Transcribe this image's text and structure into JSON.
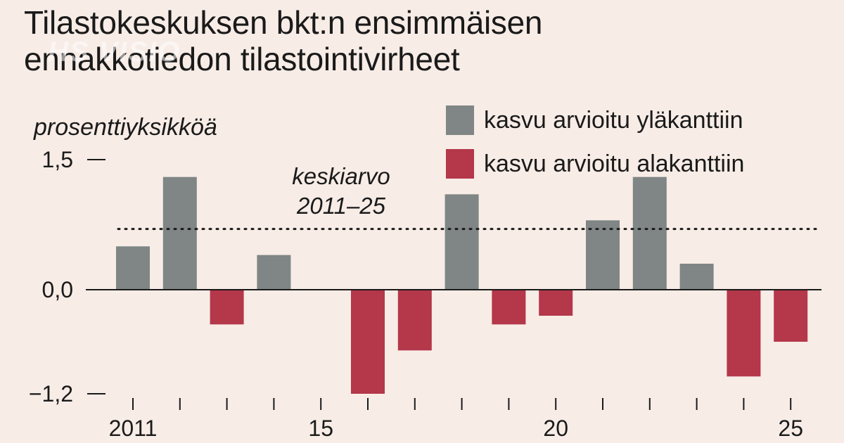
{
  "title_lines": [
    "Tilastokeskuksen bkt:n ensimmäisen",
    "ennakkotiedon tilastointivirheet"
  ],
  "watermark": "HS VISIO",
  "colors": {
    "over": "#7f8685",
    "under": "#b4374a",
    "background": "#f7ece6"
  },
  "legend": [
    {
      "label": "kasvu arvioitu yläkanttiin",
      "color_key": "over"
    },
    {
      "label": "kasvu arvioitu alakanttiin",
      "color_key": "under"
    }
  ],
  "chart_data": {
    "type": "bar",
    "title": "Tilastokeskuksen bkt:n ensimmäisen ennakkotiedon tilastointivirheet",
    "ylabel": "prosenttiyksikköä",
    "xlabel": "",
    "ylim": [
      -1.2,
      1.5
    ],
    "y_ticks": [
      {
        "value": 1.5,
        "label": "1,5"
      },
      {
        "value": 0.0,
        "label": "0,0"
      },
      {
        "value": -1.2,
        "label": "−1,2"
      }
    ],
    "x_tick_labels": [
      {
        "year": 2011,
        "label": "2011"
      },
      {
        "year": 2015,
        "label": "15"
      },
      {
        "year": 2020,
        "label": "20"
      },
      {
        "year": 2025,
        "label": "25"
      }
    ],
    "categories": [
      2011,
      2012,
      2013,
      2014,
      2015,
      2016,
      2017,
      2018,
      2019,
      2020,
      2021,
      2022,
      2023,
      2024,
      2025
    ],
    "values": [
      0.5,
      1.3,
      -0.4,
      0.4,
      null,
      -1.2,
      -0.7,
      1.1,
      -0.4,
      -0.3,
      0.8,
      1.3,
      0.3,
      -1.0,
      -0.6
    ],
    "average": {
      "value": 0.7,
      "label_lines": [
        "keskiarvo",
        "2011–25"
      ]
    },
    "grid": false,
    "legend_position": "top-right"
  }
}
